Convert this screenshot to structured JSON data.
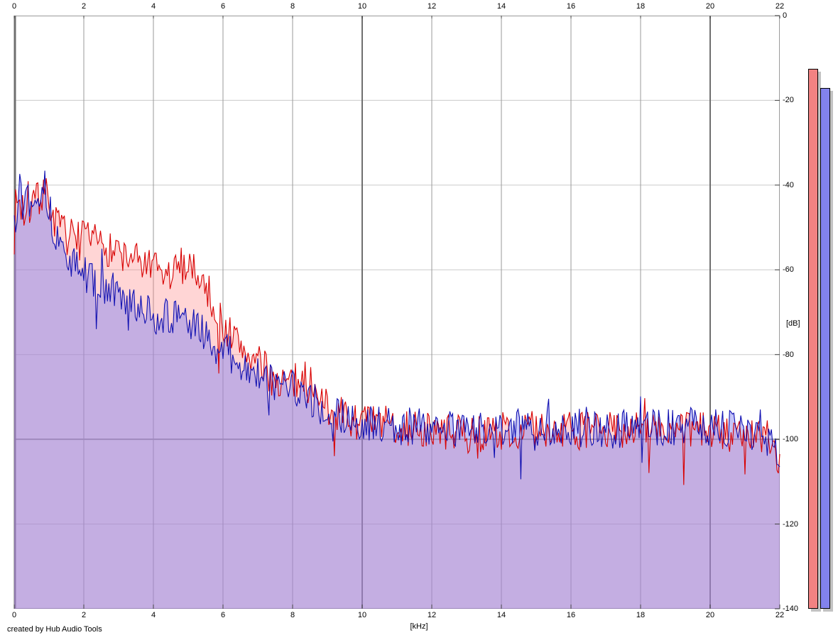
{
  "app": {
    "footer_credit": "created by Hub Audio Tools"
  },
  "chart_data": {
    "type": "area",
    "title": "",
    "xlabel": "[kHz]",
    "ylabel": "[dB]",
    "xlim": [
      0,
      22
    ],
    "ylim": [
      -140,
      0
    ],
    "grid": true,
    "x_ticks": [
      0,
      2,
      4,
      6,
      8,
      10,
      12,
      14,
      16,
      18,
      20,
      22
    ],
    "y_ticks": [
      0,
      -20,
      -40,
      -60,
      -80,
      -100,
      -120,
      -140
    ],
    "x_major_gridlines": [
      0,
      10,
      20
    ],
    "y_major_gridlines": [
      -100
    ],
    "colors": {
      "grid_minor_v": "#9a9a9a",
      "grid_major_v": "#6f6f6f",
      "grid_minor_h": "#cacaca",
      "grid_major_h": "#9a9a9a",
      "axis_border": "#9a9a9a",
      "tick": "#444444",
      "meter_shadow": "#c3c3c3"
    },
    "series": [
      {
        "name": "spectrum-red",
        "line_color": "#d80000",
        "fill_color": "rgba(255,128,128,0.33)",
        "seed": 7,
        "noise_db": 4.5,
        "envelope_khz": [
          0,
          0.1,
          0.25,
          0.4,
          0.55,
          0.7,
          0.85,
          1.0,
          1.2,
          1.5,
          2.0,
          2.5,
          3.0,
          3.5,
          4.0,
          4.4,
          4.8,
          5.1,
          5.5,
          6.0,
          6.5,
          7.0,
          7.5,
          8.0,
          8.3,
          8.6,
          9.0,
          9.5,
          10,
          11,
          12,
          13,
          14,
          15,
          16,
          17,
          18,
          19,
          20,
          21,
          21.7,
          22
        ],
        "envelope_db": [
          -50,
          -43,
          -46,
          -44,
          -45,
          -43,
          -41,
          -44,
          -49,
          -52,
          -53,
          -54,
          -56,
          -58,
          -60,
          -62,
          -59,
          -58,
          -64,
          -73,
          -78,
          -82,
          -86,
          -87,
          -85,
          -88,
          -92,
          -95,
          -96,
          -97,
          -98,
          -99,
          -98,
          -98,
          -98,
          -98,
          -97,
          -98,
          -98,
          -99,
          -100,
          -104
        ]
      },
      {
        "name": "spectrum-blue",
        "line_color": "#1212b2",
        "fill_color": "rgba(130,130,240,0.47)",
        "seed": 13,
        "noise_db": 4.5,
        "envelope_khz": [
          0,
          0.1,
          0.25,
          0.4,
          0.55,
          0.7,
          0.85,
          1.0,
          1.2,
          1.5,
          2.0,
          2.5,
          3.0,
          3.5,
          4.0,
          4.4,
          4.8,
          5.1,
          5.5,
          6.0,
          6.5,
          7.0,
          7.5,
          8.0,
          8.3,
          8.6,
          9.0,
          9.5,
          10,
          11,
          12,
          13,
          14,
          15,
          16,
          17,
          18,
          19,
          20,
          21,
          21.7,
          22
        ],
        "envelope_db": [
          -48,
          -41,
          -44,
          -42,
          -43,
          -41,
          -39,
          -46,
          -52,
          -57,
          -61,
          -63,
          -66,
          -69,
          -71,
          -71,
          -72,
          -73,
          -76,
          -79,
          -82,
          -85,
          -87,
          -88,
          -89,
          -91,
          -93,
          -95,
          -96,
          -97,
          -97,
          -98,
          -97,
          -97,
          -97,
          -98,
          -97,
          -97,
          -97,
          -98,
          -99,
          -103
        ]
      }
    ],
    "meters": [
      {
        "name": "red-level-meter",
        "value_db": -12.5,
        "color": "#f28282"
      },
      {
        "name": "blue-level-meter",
        "value_db": -17,
        "color": "#8282ec"
      }
    ]
  }
}
